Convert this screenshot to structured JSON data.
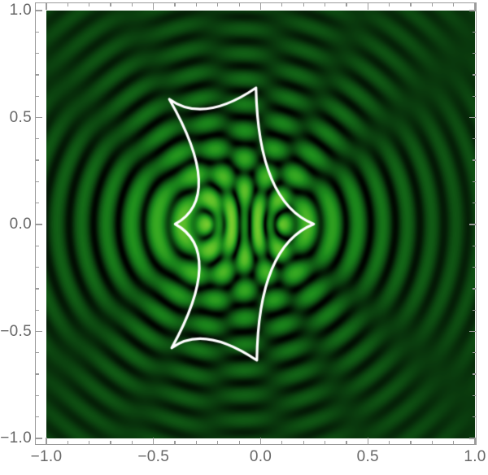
{
  "figure": {
    "title": "",
    "kind": "wave-optics interference density plot with gravitational-lens caustic overlay",
    "background_color": "#ffffff",
    "frame_color": "#9b9b9b",
    "tick_label_color": "#676767"
  },
  "chart_data": {
    "type": "heatmap",
    "title": "",
    "xlabel": "",
    "ylabel": "",
    "xlim": [
      -1.0,
      1.0
    ],
    "ylim": [
      -1.0,
      1.0
    ],
    "grid": false,
    "legend": null,
    "x_ticks": {
      "values": [
        -1.0,
        -0.5,
        0.0,
        0.5,
        1.0
      ],
      "labels": [
        "−1.0",
        "−0.5",
        "0.0",
        "0.5",
        "1.0"
      ],
      "minor_step": 0.1
    },
    "y_ticks": {
      "values": [
        -1.0,
        -0.5,
        0.0,
        0.5,
        1.0
      ],
      "labels": [
        "−1.0",
        "−0.5",
        "0.0",
        "0.5",
        "1.0"
      ],
      "minor_step": 0.1
    },
    "colormap": {
      "description": "black → dark green → green → yellow-green → pale yellow",
      "stops": [
        [
          0.0,
          0,
          3,
          0
        ],
        [
          0.14,
          5,
          30,
          7
        ],
        [
          0.3,
          11,
          64,
          15
        ],
        [
          0.46,
          18,
          98,
          22
        ],
        [
          0.62,
          28,
          138,
          28
        ],
        [
          0.74,
          55,
          170,
          34
        ],
        [
          0.84,
          105,
          198,
          44
        ],
        [
          0.92,
          175,
          222,
          58
        ],
        [
          1.0,
          246,
          248,
          150
        ]
      ]
    },
    "interference_pattern": {
      "description": "Intensity |psi|^2 of two coherent point sources plus a direct reference wave: concentric circular fringes with radial petal modulation outside, lattice of bright spots inside the caustic, two bright yellow-green peaks on the x-axis",
      "sources": [
        {
          "x": -0.25,
          "y": 0.0,
          "weight": 1.05
        },
        {
          "x": 0.1,
          "y": 0.0,
          "weight": 0.78
        }
      ],
      "direct_wave_amplitude": 0.45,
      "wavenumber": 52,
      "chirp": 2,
      "envelope_radius": 0.3,
      "half_intensity": 0.55,
      "bright_peaks": [
        {
          "x": -0.25,
          "y": 0.0
        },
        {
          "x": 0.1,
          "y": 0.0
        }
      ]
    },
    "caustic_overlay": {
      "color": "#ffffff",
      "line_width": 3.2,
      "cusps": [
        {
          "x": -0.398,
          "y": 0.0
        },
        {
          "x": -0.425,
          "y": 0.585
        },
        {
          "x": -0.02,
          "y": 0.638
        },
        {
          "x": 0.25,
          "y": 0.0
        },
        {
          "x": -0.016,
          "y": -0.638
        },
        {
          "x": -0.414,
          "y": -0.58
        }
      ],
      "edge_controls": [
        {
          "x": -0.164,
          "y": 0.128
        },
        {
          "x": -0.266,
          "y": 0.47
        },
        {
          "x": -0.009,
          "y": 0.104
        },
        {
          "x": -0.009,
          "y": -0.104
        },
        {
          "x": -0.266,
          "y": -0.47
        },
        {
          "x": -0.164,
          "y": -0.128
        }
      ]
    }
  }
}
